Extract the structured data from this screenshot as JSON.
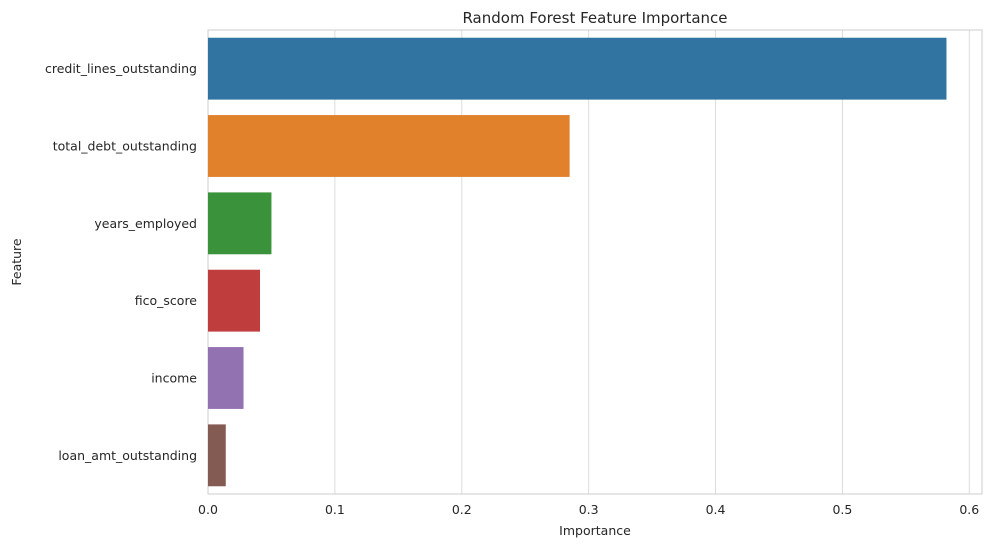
{
  "chart_data": {
    "type": "bar",
    "orientation": "horizontal",
    "title": "Random Forest Feature Importance",
    "xlabel": "Importance",
    "ylabel": "Feature",
    "categories": [
      "credit_lines_outstanding",
      "total_debt_outstanding",
      "years_employed",
      "fico_score",
      "income",
      "loan_amt_outstanding"
    ],
    "values": [
      0.582,
      0.285,
      0.05,
      0.041,
      0.028,
      0.014
    ],
    "colors": [
      "#3274a1",
      "#e1812c",
      "#3a923a",
      "#c03d3e",
      "#9372b2",
      "#845b53"
    ],
    "xlim": [
      0,
      0.61
    ],
    "xticks": [
      0.0,
      0.1,
      0.2,
      0.3,
      0.4,
      0.5,
      0.6
    ],
    "xtick_labels": [
      "0.0",
      "0.1",
      "0.2",
      "0.3",
      "0.4",
      "0.5",
      "0.6"
    ],
    "grid": true,
    "grid_axis": "x"
  }
}
